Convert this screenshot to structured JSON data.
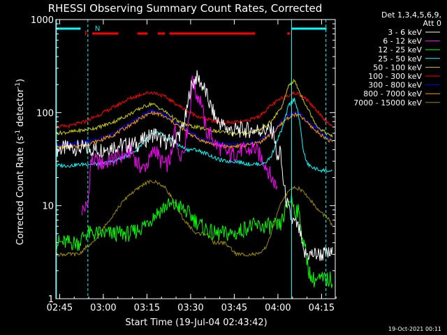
{
  "chart_data": {
    "type": "line",
    "title": "RHESSI Observing Summary Count Rates, Corrected",
    "xlabel": "Start Time (19-Jul-04 02:43:42)",
    "ylabel": "Corrected Count Rate (s",
    "ylabel_sup1": "-1",
    "ylabel_mid": " detector",
    "ylabel_sup2": "-1",
    "ylabel_end": ")",
    "y_scale": "log",
    "ylim": [
      1,
      1000
    ],
    "xlim_minutes": [
      0,
      96
    ],
    "x_ticks": [
      {
        "minute": 1.3,
        "label": "02:45"
      },
      {
        "minute": 16.3,
        "label": "03:00"
      },
      {
        "minute": 31.3,
        "label": "03:15"
      },
      {
        "minute": 46.3,
        "label": "03:30"
      },
      {
        "minute": 61.3,
        "label": "03:45"
      },
      {
        "minute": 76.3,
        "label": "04:00"
      },
      {
        "minute": 91.3,
        "label": "04:15"
      }
    ],
    "y_ticks": [
      {
        "value": 1,
        "label": "1"
      },
      {
        "value": 10,
        "label": "10"
      },
      {
        "value": 100,
        "label": "100"
      },
      {
        "value": 1000,
        "label": "1000"
      }
    ],
    "legend_header": [
      "Det 1,3,4,5,6,9,",
      "Att 0"
    ],
    "series": [
      {
        "name": "3 - 6 keV",
        "color": "#ffffff",
        "minutes": [
          0,
          5,
          10,
          15,
          20,
          25,
          28,
          30,
          32,
          34,
          36,
          40,
          43,
          45,
          46,
          48,
          49,
          51,
          53,
          55,
          58,
          60,
          63,
          66,
          70,
          74,
          75,
          76,
          77,
          78,
          79,
          80,
          81,
          83,
          84,
          85,
          86,
          88,
          90,
          93,
          95
        ],
        "values": [
          40,
          42,
          41,
          40,
          44,
          45,
          46,
          50,
          55,
          60,
          50,
          48,
          62,
          100,
          170,
          240,
          230,
          180,
          120,
          85,
          70,
          65,
          65,
          65,
          65,
          64,
          60,
          30,
          40,
          20,
          12,
          9,
          7,
          6,
          5,
          3,
          3,
          3,
          3,
          3,
          3
        ]
      },
      {
        "name": "6 - 12 keV",
        "color": "#ff00ff",
        "minutes": [
          9,
          11,
          12,
          14,
          16,
          18,
          20,
          22,
          24,
          26,
          28,
          30,
          32,
          34,
          36,
          38,
          40,
          41,
          42,
          44,
          46,
          47,
          48,
          49,
          50,
          51,
          52,
          53,
          55,
          58,
          60,
          62,
          64,
          66,
          68,
          70,
          72,
          74,
          76
        ],
        "values": [
          9,
          10,
          30,
          30,
          28,
          30,
          32,
          34,
          35,
          40,
          28,
          25,
          30,
          42,
          30,
          27,
          35,
          80,
          35,
          40,
          100,
          250,
          160,
          150,
          130,
          80,
          60,
          60,
          45,
          38,
          35,
          37,
          40,
          38,
          42,
          35,
          28,
          20,
          16
        ]
      },
      {
        "name": "12 - 25 keV",
        "color": "#00ff00",
        "minutes": [
          0,
          5,
          8,
          10,
          14,
          18,
          22,
          26,
          30,
          34,
          38,
          42,
          46,
          50,
          54,
          58,
          62,
          66,
          70,
          74,
          77,
          79,
          80,
          81,
          82,
          83,
          84,
          85,
          86,
          87,
          88,
          90,
          93,
          95
        ],
        "values": [
          4,
          4,
          4,
          5,
          5,
          5,
          5,
          5,
          6,
          8,
          10,
          10,
          8,
          6,
          5,
          5,
          5,
          6,
          6,
          6,
          6,
          9,
          11,
          12,
          9,
          9,
          7,
          4,
          3,
          2,
          1.6,
          1.6,
          1.6,
          1.6
        ]
      },
      {
        "name": "25 - 50 keV",
        "color": "#00ffff",
        "minutes": [
          0,
          5,
          10,
          15,
          20,
          25,
          28,
          30,
          32,
          34,
          36,
          38,
          40,
          42,
          45,
          48,
          50,
          52,
          55,
          58,
          60,
          62,
          64,
          66,
          68,
          70,
          72,
          74,
          76,
          78,
          80,
          82,
          83,
          84,
          85,
          86,
          87,
          89,
          91,
          93,
          95
        ],
        "values": [
          27,
          27,
          28,
          28,
          30,
          35,
          40,
          48,
          55,
          60,
          60,
          52,
          52,
          45,
          40,
          40,
          38,
          36,
          32,
          30,
          30,
          30,
          29,
          28,
          28,
          28,
          29,
          34,
          50,
          70,
          120,
          140,
          110,
          70,
          40,
          30,
          27,
          25,
          24,
          24,
          23
        ]
      },
      {
        "name": "50 - 100 keV",
        "color": "#cccc00",
        "minutes": [
          0,
          5,
          10,
          15,
          20,
          25,
          30,
          33,
          35,
          38,
          42,
          46,
          50,
          55,
          60,
          65,
          70,
          74,
          78,
          80,
          82,
          84,
          86,
          88,
          90,
          93,
          95
        ],
        "values": [
          60,
          62,
          65,
          70,
          80,
          95,
          115,
          125,
          115,
          100,
          80,
          72,
          68,
          63,
          60,
          60,
          65,
          80,
          120,
          200,
          220,
          160,
          120,
          90,
          70,
          60,
          55
        ]
      },
      {
        "name": "100 - 300 keV",
        "color": "#ff0000",
        "minutes": [
          0,
          5,
          10,
          15,
          20,
          25,
          30,
          33,
          35,
          38,
          42,
          46,
          50,
          55,
          60,
          65,
          70,
          74,
          78,
          81,
          83,
          85,
          88,
          91,
          93,
          95
        ],
        "values": [
          70,
          72,
          80,
          95,
          115,
          140,
          160,
          165,
          160,
          145,
          120,
          100,
          88,
          80,
          78,
          80,
          92,
          120,
          145,
          160,
          160,
          150,
          120,
          95,
          80,
          72
        ]
      },
      {
        "name": "300 - 800 keV",
        "color": "#0000ff",
        "minutes": [
          0,
          5,
          10,
          15,
          20,
          25,
          30,
          33,
          36,
          40,
          45,
          50,
          55,
          60,
          65,
          70,
          75,
          79,
          82,
          84,
          86,
          89,
          92,
          95
        ],
        "values": [
          45,
          46,
          48,
          52,
          60,
          75,
          95,
          105,
          100,
          85,
          65,
          52,
          47,
          45,
          46,
          50,
          65,
          90,
          100,
          98,
          85,
          70,
          58,
          50
        ]
      },
      {
        "name": "800 - 7000 keV",
        "color": "#ff9900",
        "minutes": [
          0,
          5,
          10,
          15,
          20,
          25,
          30,
          33,
          36,
          40,
          45,
          50,
          55,
          60,
          65,
          70,
          75,
          79,
          82,
          84,
          86,
          89,
          92,
          95
        ],
        "values": [
          42,
          43,
          45,
          50,
          58,
          72,
          90,
          100,
          95,
          80,
          62,
          50,
          45,
          43,
          44,
          48,
          62,
          85,
          95,
          92,
          80,
          65,
          55,
          48
        ]
      },
      {
        "name": "7000 - 15000 keV",
        "color": "#998800",
        "minutes": [
          0,
          5,
          8,
          10,
          13,
          16,
          19,
          22,
          25,
          28,
          30,
          32,
          34,
          36,
          38,
          40,
          42,
          44,
          46,
          48,
          50,
          52,
          54,
          56,
          58,
          60,
          62,
          64,
          66,
          68,
          70,
          72,
          74,
          76,
          78,
          80,
          82,
          84,
          86,
          88,
          90,
          92,
          94,
          95
        ],
        "values": [
          3,
          3,
          3,
          3.5,
          4,
          5.5,
          7.5,
          10,
          13,
          15,
          17,
          18,
          18,
          17,
          15,
          12,
          9,
          7,
          6,
          5,
          5,
          5,
          4,
          4,
          4,
          3.5,
          3,
          3,
          3,
          3,
          3,
          3.5,
          5,
          8,
          12,
          14,
          16,
          15,
          13,
          11,
          9,
          8,
          7,
          6
        ]
      }
    ],
    "annotations": [
      {
        "text": "N",
        "color": "#00ffff"
      },
      {
        "text": "F",
        "color": "#ff0000"
      }
    ],
    "night_bars_minutes": [
      [
        0,
        8.5
      ],
      [
        81,
        93
      ]
    ],
    "flare_bars_minutes": [
      [
        12.5,
        21.5
      ],
      [
        28,
        31.5
      ],
      [
        35,
        37.5
      ],
      [
        39,
        68.5
      ],
      [
        79.5,
        80.5
      ]
    ],
    "vertical_lines": [
      {
        "minute": 0.2,
        "style": "solid",
        "color": "#00ffff"
      },
      {
        "minute": 11,
        "style": "dashed",
        "color": "#00ffff"
      },
      {
        "minute": 81,
        "style": "solid",
        "color": "#00ffff"
      },
      {
        "minute": 92.8,
        "style": "dashed",
        "color": "#00ffff"
      }
    ],
    "footer_date": "19-Oct-2021 00:11"
  }
}
